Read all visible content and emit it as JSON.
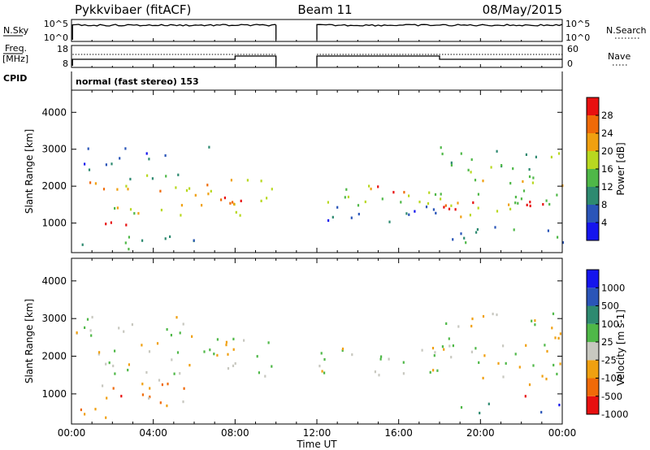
{
  "header": {
    "station": "Pykkvibaer (fitACF)",
    "beam": "Beam 11",
    "date": "08/May/2015"
  },
  "summary": {
    "nsky_label": "N.Sky",
    "nsky_ticks": [
      "10^5",
      "10^0"
    ],
    "nsearch_label": "N.Search",
    "nsearch_ticks": [
      "10^5",
      "10^0"
    ],
    "freq_label_line1": "Freq.",
    "freq_label_line2": "[MHz]",
    "freq_ticks": [
      "18",
      "8"
    ],
    "nave_label": "Nave",
    "nave_ticks": [
      "60",
      "0"
    ],
    "cpid_label": "CPID",
    "cpid_text": "normal (fast stereo) 153",
    "data_gap_hours": [
      10,
      12
    ],
    "freq_step_hours": [
      8,
      18
    ]
  },
  "chart_data": [
    {
      "type": "heatmap",
      "name": "power",
      "ylabel": "Slant Range [km]",
      "yticks": [
        "1000",
        "2000",
        "3000",
        "4000"
      ],
      "ytick_values": [
        1000,
        2000,
        3000,
        4000
      ],
      "ylim": [
        200,
        4600
      ],
      "xlim": [
        0,
        24
      ],
      "colorbar_label": "Power [dB]",
      "colorbar_ticks": [
        "4",
        "8",
        "12",
        "16",
        "20",
        "24",
        "28"
      ],
      "colorbar_colors": [
        "#1515ee",
        "#2a55b8",
        "#2e8a70",
        "#4fb848",
        "#b8d820",
        "#f0a010",
        "#f06a08",
        "#e81010"
      ],
      "bands": [
        {
          "x0": 0.4,
          "x1": 9.9,
          "y0": 1800,
          "y1": 2150,
          "level": 5
        },
        {
          "x0": 0.4,
          "x1": 5.8,
          "y0": 2200,
          "y1": 2500,
          "level": 3
        },
        {
          "x0": 1.0,
          "x1": 5.5,
          "y0": 1100,
          "y1": 1550,
          "level": 4
        },
        {
          "x0": 1.6,
          "x1": 3.0,
          "y0": 850,
          "y1": 1350,
          "level": 7
        },
        {
          "x0": 6.0,
          "x1": 9.9,
          "y0": 1500,
          "y1": 2300,
          "level": 5
        },
        {
          "x0": 7.0,
          "x1": 9.0,
          "y0": 1600,
          "y1": 2000,
          "level": 7
        },
        {
          "x0": 8.0,
          "x1": 9.9,
          "y0": 1100,
          "y1": 1400,
          "level": 4
        },
        {
          "x0": 0.2,
          "x1": 5.0,
          "y0": 2600,
          "y1": 3100,
          "level": 1
        },
        {
          "x0": 6.0,
          "x1": 7.5,
          "y0": 2850,
          "y1": 3100,
          "level": 1
        },
        {
          "x0": 0.2,
          "x1": 6.0,
          "y0": 300,
          "y1": 700,
          "level": 2
        },
        {
          "x0": 12.0,
          "x1": 18.0,
          "y0": 1500,
          "y1": 2100,
          "level": 4
        },
        {
          "x0": 14.5,
          "x1": 18.0,
          "y0": 1800,
          "y1": 2100,
          "level": 6
        },
        {
          "x0": 12.0,
          "x1": 18.0,
          "y0": 1000,
          "y1": 1500,
          "level": 1
        },
        {
          "x0": 18.0,
          "x1": 24.0,
          "y0": 1200,
          "y1": 2200,
          "level": 4
        },
        {
          "x0": 18.0,
          "x1": 21.0,
          "y0": 1350,
          "y1": 1800,
          "level": 7
        },
        {
          "x0": 21.0,
          "x1": 24.0,
          "y0": 1400,
          "y1": 1800,
          "level": 6
        },
        {
          "x0": 18.0,
          "x1": 24.0,
          "y0": 2200,
          "y1": 3100,
          "level": 3
        },
        {
          "x0": 18.5,
          "x1": 24.0,
          "y0": 500,
          "y1": 1000,
          "level": 2
        }
      ]
    },
    {
      "type": "heatmap",
      "name": "velocity",
      "ylabel": "Slant Range [km]",
      "yticks": [
        "1000",
        "2000",
        "3000",
        "4000"
      ],
      "ytick_values": [
        1000,
        2000,
        3000,
        4000
      ],
      "ylim": [
        200,
        4600
      ],
      "xlim": [
        0,
        24
      ],
      "colorbar_label": "Velocity [m s-1]",
      "colorbar_ticks": [
        "1000",
        "500",
        "100",
        "25",
        "-25",
        "-100",
        "-500",
        "-1000"
      ],
      "colorbar_colors": [
        "#1515ee",
        "#2a55b8",
        "#2e8a70",
        "#4fb848",
        "#c8c8c0",
        "#f0a010",
        "#f06a08",
        "#e81010"
      ],
      "bands": [
        {
          "x0": 0.4,
          "x1": 9.9,
          "y0": 1500,
          "y1": 2500,
          "level": 4
        },
        {
          "x0": 0.2,
          "x1": 6.0,
          "y0": 2500,
          "y1": 3200,
          "level": 4
        },
        {
          "x0": 1.0,
          "x1": 5.8,
          "y0": 700,
          "y1": 1450,
          "level": 5
        },
        {
          "x0": 1.6,
          "x1": 3.0,
          "y0": 900,
          "y1": 1300,
          "level": 6
        },
        {
          "x0": 0.2,
          "x1": 2.5,
          "y0": 300,
          "y1": 700,
          "level": 5
        },
        {
          "x0": 12.0,
          "x1": 24.0,
          "y0": 1400,
          "y1": 2300,
          "level": 4
        },
        {
          "x0": 18.0,
          "x1": 24.0,
          "y0": 2300,
          "y1": 3200,
          "level": 4
        },
        {
          "x0": 19.0,
          "x1": 21.5,
          "y0": 500,
          "y1": 800,
          "level": 2
        },
        {
          "x0": 22.0,
          "x1": 24.0,
          "y0": 500,
          "y1": 800,
          "level": 1
        },
        {
          "x0": 22.0,
          "x1": 23.5,
          "y0": 950,
          "y1": 1300,
          "level": 6
        }
      ]
    }
  ],
  "xaxis": {
    "label": "Time UT",
    "ticks": [
      "00:00",
      "04:00",
      "08:00",
      "12:00",
      "16:00",
      "20:00",
      "00:00"
    ],
    "tick_hours": [
      0,
      4,
      8,
      12,
      16,
      20,
      24
    ]
  }
}
